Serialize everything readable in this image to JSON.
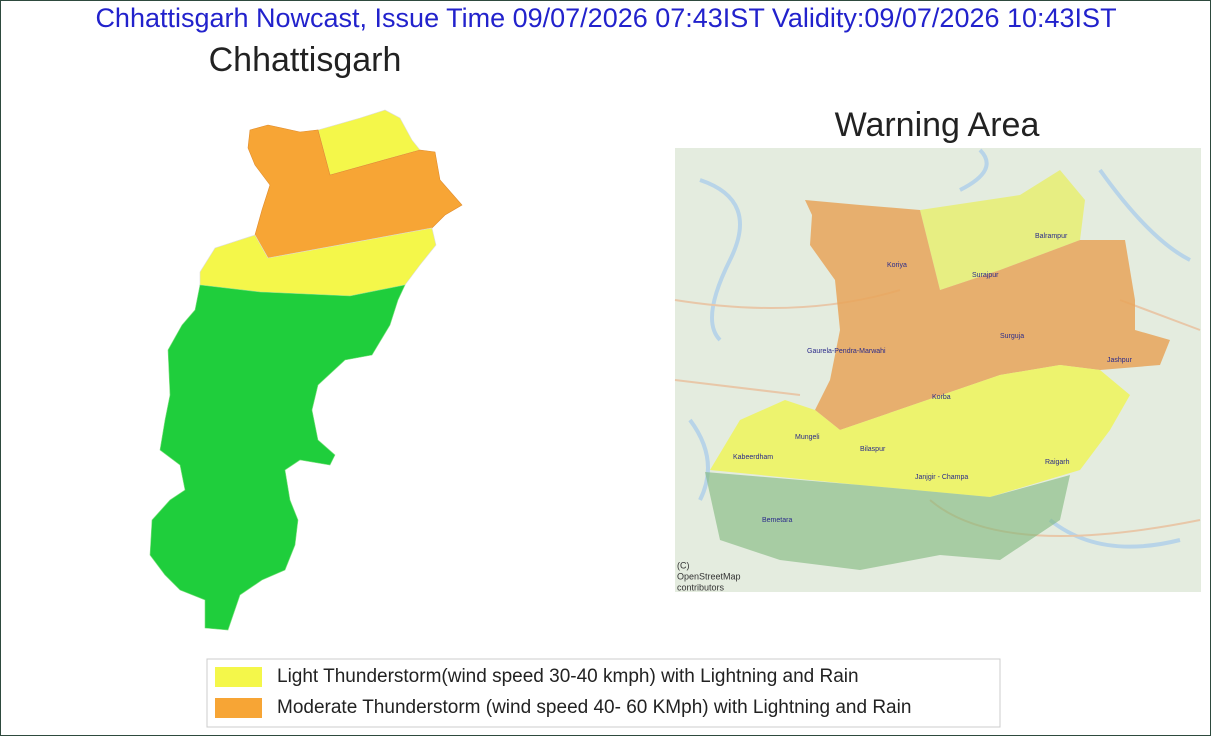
{
  "header": {
    "title": "Chhattisgarh Nowcast, Issue Time 09/07/2026 07:43IST  Validity:09/07/2026 10:43IST"
  },
  "state_map": {
    "title": "Chhattisgarh"
  },
  "warning_map": {
    "title": "Warning Area",
    "places": [
      "Balrampur",
      "Koriya",
      "Surajpur",
      "Surguja",
      "Gaurela-Pendra-Marwahi",
      "Jashpur",
      "Korba",
      "Mungeli",
      "Bilaspur",
      "Kabeerdham",
      "Janjgir - Champa",
      "Raigarh",
      "Bemetara"
    ],
    "attribution": [
      "(C)",
      "OpenStreetMap",
      "contributors"
    ]
  },
  "legend": {
    "items": [
      {
        "label": "Light Thunderstorm(wind speed 30-40 kmph) with Lightning and Rain",
        "color": "#f4f74a"
      },
      {
        "label": "Moderate Thunderstorm (wind speed 40- 60 KMph) with Lightning and Rain",
        "color": "#f7a535"
      }
    ]
  }
}
